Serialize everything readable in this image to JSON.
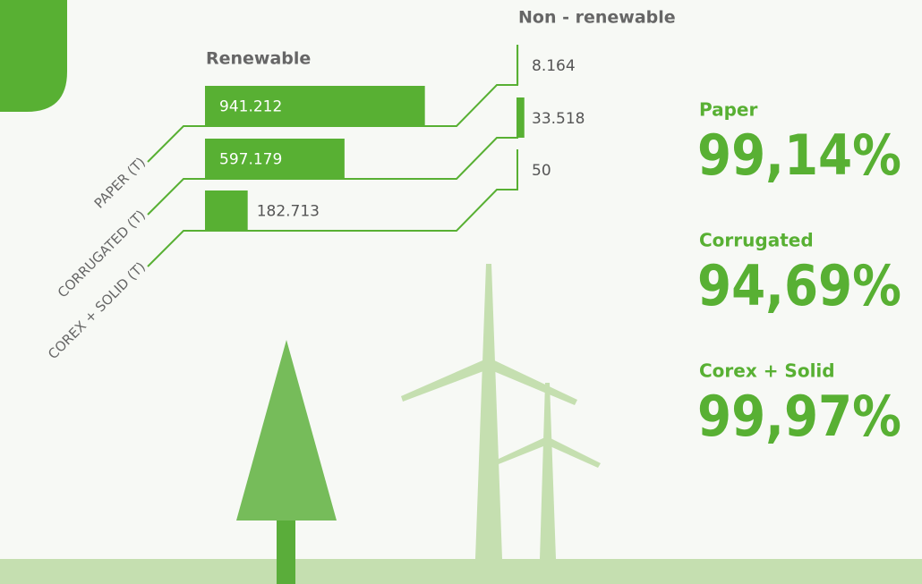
{
  "chart_data": {
    "type": "bar",
    "categories": [
      "PAPER (T)",
      "CORRUGATED (T)",
      "COREX + SOLID (T)"
    ],
    "series": [
      {
        "name": "Renewable",
        "color": "#58b033",
        "values": [
          941212,
          597179,
          182713
        ],
        "value_labels": [
          "941.212",
          "597.179",
          "182.713"
        ]
      },
      {
        "name": "Non - renewable",
        "color": "#58b033",
        "values": [
          8164,
          33518,
          50
        ],
        "value_labels": [
          "8.164",
          "33.518",
          "50"
        ]
      }
    ],
    "xlim": [
      0,
      1000000
    ],
    "shares": {
      "names": [
        "Paper",
        "Corrugated",
        "Corex + Solid"
      ],
      "values": [
        99.14,
        94.69,
        99.97
      ],
      "value_labels": [
        "99,14%",
        "94,69%",
        "99,97%"
      ],
      "color": "#58b033"
    }
  }
}
